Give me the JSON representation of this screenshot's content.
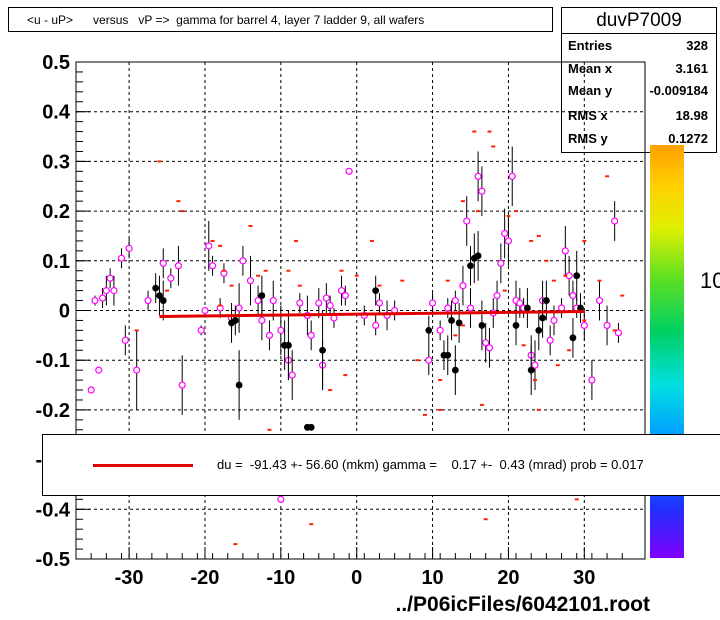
{
  "title": "<u - uP>      versus   vP =>  gamma for barrel 4, layer 7 ladder 9, all wafers",
  "stats": {
    "name": "duvP7009",
    "rows": [
      {
        "k": "Entries",
        "v": "328"
      },
      {
        "k": "Mean x",
        "v": "3.161"
      },
      {
        "k": "Mean y",
        "v": "-0.009184"
      },
      {
        "k": "RMS x",
        "v": "18.98"
      },
      {
        "k": "RMS y",
        "v": "0.1272"
      }
    ]
  },
  "legend": {
    "text": "du =  -91.43 +- 56.60 (mkm) gamma =    0.17 +-  0.43 (mrad) prob = 0.017",
    "line_color": "#e00000"
  },
  "footer": "../P06icFiles/6042101.root",
  "colorbar_labels": [
    "10",
    "10"
  ],
  "chart_data": {
    "type": "scatter",
    "xlim": [
      -37,
      38
    ],
    "ylim": [
      -0.5,
      0.5
    ],
    "x_ticks": [
      -30,
      -20,
      -10,
      0,
      10,
      20,
      30
    ],
    "x_tick_labels": [
      "-30",
      "-20",
      "-10",
      "0",
      "10",
      "20",
      "30"
    ],
    "y_ticks": [
      0.5,
      0.4,
      0.3,
      0.2,
      0.1,
      0,
      -0.1,
      -0.2,
      -0.3,
      -0.4,
      -0.5
    ],
    "y_tick_labels": [
      "0.5",
      "0.4",
      "0.3",
      "0.2",
      "0.1",
      "0",
      "-0.1",
      "-0.2",
      "-0.3",
      "-0.4",
      "-0.5"
    ],
    "grid": true,
    "fit_line": {
      "x": [
        -26,
        30
      ],
      "y": [
        -0.012,
        -0.002
      ],
      "color": "#e00000"
    },
    "series": [
      {
        "marker": "open-circle",
        "color": "#ff00ff",
        "points": [
          [
            -35,
            -0.16,
            0
          ],
          [
            -34.5,
            0.02,
            0.01
          ],
          [
            -33.5,
            0.025,
            0.02
          ],
          [
            -33,
            0.04,
            0.03
          ],
          [
            -32.5,
            0.065,
            0.02
          ],
          [
            -32,
            0.04,
            0.03
          ],
          [
            -31,
            0.105,
            0.02
          ],
          [
            -30.5,
            -0.06,
            0.03
          ],
          [
            -30,
            0.125,
            0.02
          ],
          [
            -29,
            -0.12,
            0.08
          ],
          [
            -34,
            -0.12,
            0
          ],
          [
            -27.5,
            0.02,
            0.02
          ],
          [
            -25.5,
            0.095,
            0.03
          ],
          [
            -24.5,
            0.065,
            0.02
          ],
          [
            -23.5,
            0.09,
            0.04
          ],
          [
            -23,
            -0.15,
            0.06
          ],
          [
            -20.5,
            -0.04,
            0.01
          ],
          [
            -20,
            0,
            0
          ],
          [
            -19.5,
            0.13,
            0.05
          ],
          [
            -19,
            0.09,
            0.02
          ],
          [
            -18,
            0.005,
            0.02
          ],
          [
            -17.5,
            0.075,
            0.02
          ],
          [
            -16.5,
            -0.015,
            0.03
          ],
          [
            -15.5,
            0.005,
            0.05
          ],
          [
            -15,
            0.1,
            0.03
          ],
          [
            -14,
            0.06,
            0.05
          ],
          [
            -13,
            0.02,
            0.03
          ],
          [
            -12.5,
            -0.02,
            0.04
          ],
          [
            -11.5,
            -0.05,
            0.03
          ],
          [
            -11,
            0.02,
            0.04
          ],
          [
            -10,
            -0.04,
            0.05
          ],
          [
            -9,
            -0.1,
            0.04
          ],
          [
            -8.5,
            -0.13,
            0.05
          ],
          [
            -7.5,
            0.015,
            0.02
          ],
          [
            -6.5,
            -0.01,
            0.04
          ],
          [
            -6,
            -0.05,
            0.03
          ],
          [
            -5,
            0.015,
            0.03
          ],
          [
            -4.5,
            -0.11,
            0.05
          ],
          [
            -4,
            0.025,
            0.03
          ],
          [
            -3.5,
            0.01,
            0.02
          ],
          [
            -3,
            -0.015,
            0.02
          ],
          [
            -2,
            0.04,
            0.03
          ],
          [
            -1.5,
            0.03,
            0.02
          ],
          [
            -1,
            0.28,
            0
          ],
          [
            1,
            -0.01,
            0.02
          ],
          [
            2.5,
            -0.03,
            0.02
          ],
          [
            3,
            0.015,
            0.02
          ],
          [
            4,
            -0.01,
            0.03
          ],
          [
            5,
            0,
            0.02
          ],
          [
            9.5,
            -0.1,
            0.03
          ],
          [
            10,
            0.015,
            0.02
          ],
          [
            11,
            -0.04,
            0.02
          ],
          [
            12,
            0.005,
            0.02
          ],
          [
            13,
            0.02,
            0.02
          ],
          [
            14,
            0.05,
            0.04
          ],
          [
            14.5,
            0.18,
            0.05
          ],
          [
            15,
            0.005,
            0.04
          ],
          [
            16,
            0.27,
            0.05
          ],
          [
            16.5,
            0.24,
            0.05
          ],
          [
            17,
            -0.065,
            0.04
          ],
          [
            17.5,
            -0.075,
            0.04
          ],
          [
            18,
            -0.005,
            0.03
          ],
          [
            18.5,
            0.03,
            0.03
          ],
          [
            19,
            0.095,
            0.04
          ],
          [
            19.5,
            0.155,
            0.05
          ],
          [
            20,
            0.14,
            0.05
          ],
          [
            20.5,
            0.27,
            0.06
          ],
          [
            21,
            0.02,
            0.04
          ],
          [
            21.5,
            0.015,
            0.03
          ],
          [
            22,
            0.005,
            0.02
          ],
          [
            23,
            -0.09,
            0.04
          ],
          [
            23.5,
            -0.11,
            0.05
          ],
          [
            24.5,
            0.02,
            0.04
          ],
          [
            25.5,
            -0.06,
            0.03
          ],
          [
            26,
            -0.02,
            0.03
          ],
          [
            27,
            0.005,
            0.02
          ],
          [
            27.5,
            0.12,
            0.05
          ],
          [
            28,
            0.07,
            0.04
          ],
          [
            28.5,
            0.03,
            0.03
          ],
          [
            29,
            0.005,
            0.02
          ],
          [
            30,
            -0.03,
            0.03
          ],
          [
            31,
            -0.14,
            0.04
          ],
          [
            32,
            0.02,
            0.04
          ],
          [
            33,
            -0.03,
            0.04
          ],
          [
            34,
            0.18,
            0.04
          ],
          [
            34.5,
            -0.045,
            0.02
          ],
          [
            -10,
            -0.38,
            0
          ]
        ]
      },
      {
        "marker": "filled-circle",
        "color": "#000000",
        "points": [
          [
            -26.5,
            0.045,
            0.03
          ],
          [
            -26,
            0.03,
            0.04
          ],
          [
            -25.5,
            0.02,
            0.04
          ],
          [
            -16.5,
            -0.025,
            0.04
          ],
          [
            -16,
            -0.02,
            0.03
          ],
          [
            -15.5,
            -0.15,
            0.07
          ],
          [
            -12.5,
            0.03,
            0.04
          ],
          [
            -9.5,
            -0.07,
            0.05
          ],
          [
            -9,
            -0.07,
            0.07
          ],
          [
            -6.5,
            -0.235,
            0
          ],
          [
            -6,
            -0.235,
            0
          ],
          [
            -4.5,
            -0.08,
            0.08
          ],
          [
            2.5,
            0.04,
            0.03
          ],
          [
            9.5,
            -0.04,
            0.03
          ],
          [
            11.5,
            -0.09,
            0.03
          ],
          [
            12,
            -0.09,
            0.04
          ],
          [
            12.5,
            -0.02,
            0.04
          ],
          [
            13,
            -0.12,
            0.05
          ],
          [
            13.5,
            -0.025,
            0.04
          ],
          [
            15,
            0.09,
            0.04
          ],
          [
            15.5,
            0.105,
            0.05
          ],
          [
            16,
            0.11,
            0.05
          ],
          [
            16.5,
            -0.03,
            0.05
          ],
          [
            21,
            -0.03,
            0.04
          ],
          [
            22.5,
            0.005,
            0.04
          ],
          [
            23,
            -0.12,
            0.05
          ],
          [
            24,
            -0.04,
            0.04
          ],
          [
            24.5,
            -0.015,
            0.04
          ],
          [
            25,
            0.02,
            0.04
          ],
          [
            28.5,
            -0.055,
            0.04
          ],
          [
            29,
            0.07,
            0.05
          ],
          [
            29.5,
            0.005,
            0.03
          ]
        ]
      },
      {
        "marker": "dash",
        "color": "#ff2000",
        "points": [
          [
            -26,
            0.3
          ],
          [
            -25,
            0.04
          ],
          [
            -23.5,
            0.22
          ],
          [
            -23,
            0.2
          ],
          [
            -19,
            0.14
          ],
          [
            -18,
            0.13
          ],
          [
            -17.5,
            0.08
          ],
          [
            -16.5,
            0.05
          ],
          [
            -16,
            -0.47
          ],
          [
            -14,
            0.17
          ],
          [
            -13,
            0.07
          ],
          [
            -12,
            0.08
          ],
          [
            -11.5,
            -0.24
          ],
          [
            -9,
            0.08
          ],
          [
            -8,
            0.14
          ],
          [
            -7.5,
            0.05
          ],
          [
            -6,
            -0.43
          ],
          [
            -3.5,
            -0.16
          ],
          [
            -1.5,
            -0.13
          ],
          [
            0,
            0.07
          ],
          [
            2,
            0.14
          ],
          [
            3,
            0.05
          ],
          [
            6,
            0.06
          ],
          [
            8,
            -0.1
          ],
          [
            9,
            -0.21
          ],
          [
            11,
            -0.2
          ],
          [
            12,
            0.06
          ],
          [
            13,
            -0.05
          ],
          [
            14,
            0.22
          ],
          [
            15.5,
            0.36
          ],
          [
            16,
            0.2
          ],
          [
            16.5,
            -0.19
          ],
          [
            17.5,
            0.36
          ],
          [
            18,
            0.33
          ],
          [
            19.5,
            0.04
          ],
          [
            20,
            0.19
          ],
          [
            21,
            0.2
          ],
          [
            22,
            -0.07
          ],
          [
            23,
            0.14
          ],
          [
            23.5,
            -0.14
          ],
          [
            24,
            0.15
          ],
          [
            25,
            0.1
          ],
          [
            26,
            0.06
          ],
          [
            26.5,
            -0.11
          ],
          [
            27.5,
            0.07
          ],
          [
            28,
            -0.08
          ],
          [
            29,
            -0.38
          ],
          [
            30,
            0.14
          ],
          [
            32,
            0.06
          ],
          [
            33,
            0.27
          ],
          [
            34,
            -0.04
          ],
          [
            35,
            0.03
          ],
          [
            -29,
            -0.04
          ],
          [
            -18,
            0.01
          ],
          [
            -2,
            0.08
          ],
          [
            11,
            -0.14
          ],
          [
            14,
            -0.03
          ],
          [
            17,
            -0.42
          ],
          [
            24,
            -0.2
          ],
          [
            30,
            -0.02
          ]
        ]
      }
    ]
  }
}
